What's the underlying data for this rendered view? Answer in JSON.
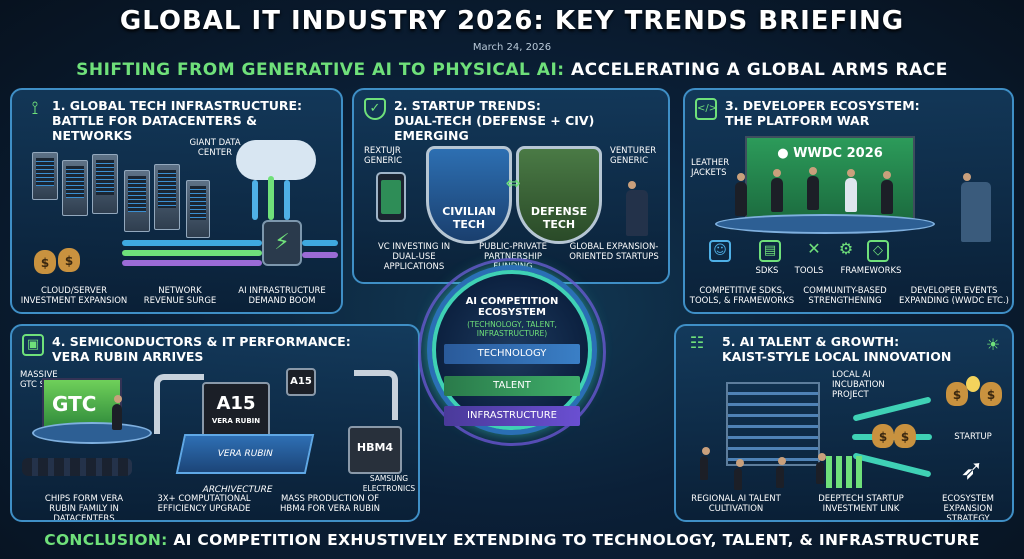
{
  "header": {
    "title": "GLOBAL IT INDUSTRY 2026: KEY TRENDS BRIEFING",
    "date": "March 24, 2026",
    "subtitle_highlight": "SHIFTING FROM GENERATIVE AI TO PHYSICAL AI:",
    "subtitle_rest": " ACCELERATING A GLOBAL ARMS RACE"
  },
  "panel1": {
    "title_line1": "1. GLOBAL TECH INFRASTRUCTURE:",
    "title_line2": "BATTLE FOR DATACENTERS & NETWORKS",
    "label_datacenter": "GIANT DATA CENTER",
    "label_cloud": "CLOUD/SERVER INVESTMENT EXPANSION",
    "label_network": "NETWORK REVENUE SURGE",
    "label_ai": "AI INFRASTRUCTURE DEMAND BOOM"
  },
  "panel2": {
    "title_line1": "2. STARTUP TRENDS:",
    "title_line2": "DUAL-TECH (DEFENSE + CIV) EMERGING",
    "label_left_person": "REXTUJR GENERIC",
    "label_right_person": "VENTURER GENERIC",
    "shield_civilian": "CIVILIAN TECH",
    "shield_defense": "DEFENSE TECH",
    "label_vc": "VC INVESTING IN DUAL-USE APPLICATIONS",
    "label_ppp": "PUBLIC-PRIVATE PARTNERSHIP FUNDING",
    "label_global": "GLOBAL EXPANSION-ORIENTED STARTUPS"
  },
  "panel3": {
    "title_line1": "3. DEVELOPER ECOSYSTEM:",
    "title_line2": "THE PLATFORM WAR",
    "screen_text": "WWDC 2026",
    "label_leather": "LEATHER JACKETS",
    "tool_sdks": "SDKs",
    "tool_tools": "TOOLS",
    "tool_frameworks": "FRAMEWORKS",
    "label_competitive": "COMPETITIVE SDKs, TOOLS, & FRAMEWORKS",
    "label_community": "COMMUNITY-BASED STRENGTHENING",
    "label_events": "DEVELOPER EVENTS EXPANDING (WWDC ETC.)"
  },
  "center": {
    "title": "AI COMPETITION ECOSYSTEM",
    "subtitle": "(TECHNOLOGY, TALENT, INFRASTRUCTURE)",
    "band1": "TECHNOLOGY",
    "band2": "TALENT",
    "band3": "INFRASTRUCTURE"
  },
  "panel4": {
    "title_line1": "4. SEMICONDUCTORS & IT PERFORMANCE:",
    "title_line2": "VERA RUBIN ARRIVES",
    "label_stage": "MASSIVE GTC STAGE",
    "stage_text": "GTC",
    "chip_main": "A15",
    "chip_main_sub": "VERA RUBIN",
    "chip_small": "A15",
    "base_text": "VERA RUBIN ARCHIVECTURE",
    "hbm_text": "HBM4",
    "label_samsung": "SAMSUNG ELECTRONICS",
    "label_chips": "CHIPS FORM VERA RUBIN FAMILY IN DATACENTERS",
    "label_efficiency": "3X+ COMPUTATIONAL EFFICIENCY UPGRADE",
    "label_hbm": "MASS PRODUCTION OF HBM4 FOR VERA RUBIN"
  },
  "panel5": {
    "title_line1": "5. AI TALENT & GROWTH:",
    "title_line2": "KAIST-STYLE LOCAL INNOVATION",
    "label_incubation": "LOCAL AI INCUBATION PROJECT",
    "label_startup": "STARTUP",
    "label_regional": "REGIONAL AI TALENT CULTIVATION",
    "label_deeptech": "DEEPTECH STARTUP INVESTMENT LINK",
    "label_ecosystem": "ECOSYSTEM EXPANSION STRATEGY"
  },
  "conclusion": {
    "highlight": "CONCLUSION:",
    "rest": " AI COMPETITION EXHUSTIVELY EXTENDING TO TECHNOLOGY, TALENT, & INFRASTRUCTURE"
  },
  "colors": {
    "accent_green": "#6fe07a",
    "panel_border": "#3f8fc6",
    "ring_teal": "#3fd1b5"
  },
  "icons": [
    "signal-tower-icon",
    "shield-check-icon",
    "code-window-icon",
    "cpu-chip-icon",
    "people-network-icon",
    "lightbulb-person-icon",
    "apple-logo-icon",
    "dollar-bag-icon",
    "rocket-icon"
  ]
}
